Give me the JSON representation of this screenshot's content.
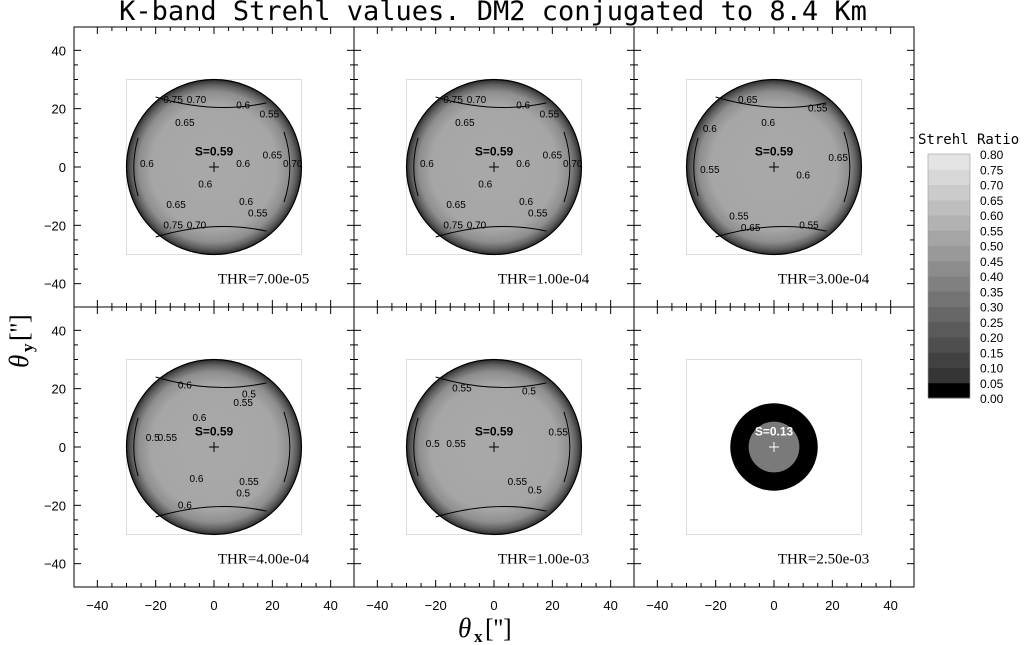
{
  "title": "K-band Strehl values. DM2 conjugated to 8.4 Km",
  "xlabel": "θ",
  "xlabel_sub": "x",
  "xlabel_unit": "['']",
  "ylabel": "θ",
  "ylabel_sub": "y",
  "ylabel_unit": "['']",
  "colorbar": {
    "title": "Strehl Ratio",
    "levels": [
      "0.80",
      "0.75",
      "0.70",
      "0.65",
      "0.60",
      "0.55",
      "0.50",
      "0.45",
      "0.40",
      "0.35",
      "0.30",
      "0.25",
      "0.20",
      "0.15",
      "0.10",
      "0.05",
      "0.00"
    ]
  },
  "chart_data": {
    "type": "contour",
    "title": "K-band Strehl values. DM2 conjugated to 8.4 Km",
    "xlabel": "θx ['']",
    "ylabel": "θy ['']",
    "xlim": [
      -48,
      48
    ],
    "ylim": [
      -48,
      48
    ],
    "xticks": [
      -40,
      -20,
      0,
      20,
      40
    ],
    "yticks": [
      -40,
      -20,
      0,
      20,
      40
    ],
    "field_radius": 30,
    "panels": [
      {
        "label": "THR=7.00e-05",
        "center_label": "S=0.59",
        "center_strehl": 0.59,
        "contours": [
          {
            "label": "0.75",
            "x": -14,
            "y": 22
          },
          {
            "label": "0.70",
            "x": -6,
            "y": 22
          },
          {
            "label": "0.65",
            "x": -10,
            "y": 14
          },
          {
            "label": "0.6",
            "x": 10,
            "y": 20
          },
          {
            "label": "0.55",
            "x": 19,
            "y": 17
          },
          {
            "label": "0.6",
            "x": -23,
            "y": 0
          },
          {
            "label": "0.6",
            "x": -3,
            "y": -7
          },
          {
            "label": "0.6",
            "x": 10,
            "y": 0
          },
          {
            "label": "0.65",
            "x": 20,
            "y": 3
          },
          {
            "label": "0.70",
            "x": 27,
            "y": 0
          },
          {
            "label": "0.65",
            "x": -13,
            "y": -14
          },
          {
            "label": "0.6",
            "x": 11,
            "y": -13
          },
          {
            "label": "0.55",
            "x": 15,
            "y": -17
          },
          {
            "label": "0.75",
            "x": -14,
            "y": -21
          },
          {
            "label": "0.70",
            "x": -6,
            "y": -21
          }
        ]
      },
      {
        "label": "THR=1.00e-04",
        "center_label": "S=0.59",
        "center_strehl": 0.59,
        "contours": [
          {
            "label": "0.75",
            "x": -14,
            "y": 22
          },
          {
            "label": "0.70",
            "x": -6,
            "y": 22
          },
          {
            "label": "0.65",
            "x": -10,
            "y": 14
          },
          {
            "label": "0.6",
            "x": 10,
            "y": 20
          },
          {
            "label": "0.55",
            "x": 19,
            "y": 17
          },
          {
            "label": "0.6",
            "x": -23,
            "y": 0
          },
          {
            "label": "0.6",
            "x": -3,
            "y": -7
          },
          {
            "label": "0.6",
            "x": 10,
            "y": 0
          },
          {
            "label": "0.65",
            "x": 20,
            "y": 3
          },
          {
            "label": "0.70",
            "x": 27,
            "y": 0
          },
          {
            "label": "0.65",
            "x": -13,
            "y": -14
          },
          {
            "label": "0.6",
            "x": 11,
            "y": -13
          },
          {
            "label": "0.55",
            "x": 15,
            "y": -17
          },
          {
            "label": "0.75",
            "x": -14,
            "y": -21
          },
          {
            "label": "0.70",
            "x": -6,
            "y": -21
          }
        ]
      },
      {
        "label": "THR=3.00e-04",
        "center_label": "S=0.59",
        "center_strehl": 0.59,
        "contours": [
          {
            "label": "0.65",
            "x": -9,
            "y": 22
          },
          {
            "label": "0.55",
            "x": 15,
            "y": 19
          },
          {
            "label": "0.6",
            "x": -2,
            "y": 14
          },
          {
            "label": "0.6",
            "x": -22,
            "y": 12
          },
          {
            "label": "0.55",
            "x": -22,
            "y": -2
          },
          {
            "label": "0.6",
            "x": 10,
            "y": -4
          },
          {
            "label": "0.65",
            "x": 22,
            "y": 2
          },
          {
            "label": "0.55",
            "x": -12,
            "y": -18
          },
          {
            "label": "0.55",
            "x": 12,
            "y": -21
          },
          {
            "label": "0.65",
            "x": -8,
            "y": -22
          }
        ]
      },
      {
        "label": "THR=4.00e-04",
        "center_label": "S=0.59",
        "center_strehl": 0.59,
        "contours": [
          {
            "label": "0.6",
            "x": -10,
            "y": 20
          },
          {
            "label": "0.55",
            "x": 10,
            "y": 14
          },
          {
            "label": "0.5",
            "x": 12,
            "y": 17
          },
          {
            "label": "0.6",
            "x": -5,
            "y": 9
          },
          {
            "label": "0.5",
            "x": -21,
            "y": 2
          },
          {
            "label": "0.55",
            "x": -16,
            "y": 2
          },
          {
            "label": "0.6",
            "x": -6,
            "y": -12
          },
          {
            "label": "0.55",
            "x": 12,
            "y": -13
          },
          {
            "label": "0.5",
            "x": 10,
            "y": -17
          },
          {
            "label": "0.6",
            "x": -10,
            "y": -21
          }
        ]
      },
      {
        "label": "THR=1.00e-03",
        "center_label": "S=0.59",
        "center_strehl": 0.59,
        "contours": [
          {
            "label": "0.55",
            "x": -11,
            "y": 19
          },
          {
            "label": "0.5",
            "x": 12,
            "y": 18
          },
          {
            "label": "0.5",
            "x": -21,
            "y": 0
          },
          {
            "label": "0.55",
            "x": -13,
            "y": 0
          },
          {
            "label": "0.55",
            "x": 22,
            "y": 4
          },
          {
            "label": "0.55",
            "x": 8,
            "y": -13
          },
          {
            "label": "0.5",
            "x": 14,
            "y": -16
          }
        ]
      },
      {
        "label": "THR=2.50e-03",
        "center_label": "S=0.13",
        "center_strehl": 0.13,
        "field_radius": 15,
        "contours": []
      }
    ],
    "colorbar": {
      "min": 0.0,
      "max": 0.8,
      "step": 0.05,
      "labels": [
        "0.80",
        "0.75",
        "0.70",
        "0.65",
        "0.60",
        "0.55",
        "0.50",
        "0.45",
        "0.40",
        "0.35",
        "0.30",
        "0.25",
        "0.20",
        "0.15",
        "0.10",
        "0.05",
        "0.00"
      ]
    }
  }
}
